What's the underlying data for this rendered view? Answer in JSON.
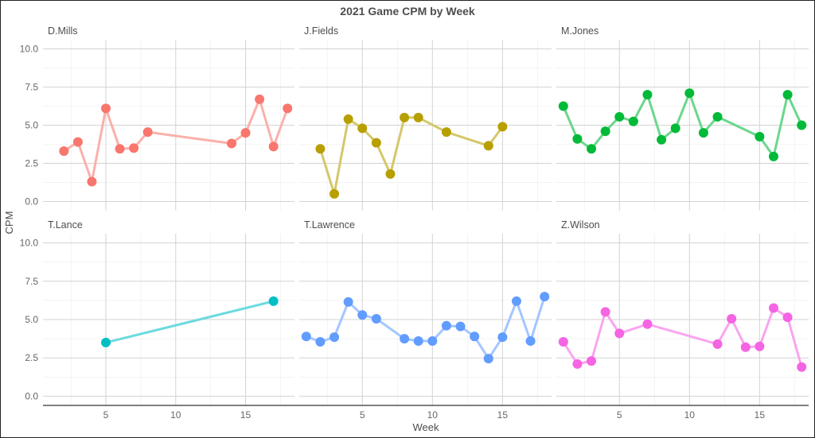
{
  "chart_data": {
    "type": "line",
    "title": "2021 Game CPM by Week",
    "xlabel": "Week",
    "ylabel": "CPM",
    "xlim": [
      0.5,
      18.5
    ],
    "ylim": [
      -0.6,
      10.6
    ],
    "x_ticks": [
      5,
      10,
      15
    ],
    "y_ticks": [
      "0.0",
      "2.5",
      "5.0",
      "7.5",
      "10.0"
    ],
    "y_tick_values": [
      0,
      2.5,
      5,
      7.5,
      10
    ],
    "grid": true,
    "facets": [
      {
        "name": "D.Mills",
        "color": "#F8766D",
        "x": [
          2,
          3,
          4,
          5,
          6,
          7,
          8,
          14,
          15,
          16,
          17,
          18
        ],
        "y": [
          3.3,
          3.9,
          1.3,
          6.1,
          3.45,
          3.5,
          4.55,
          3.8,
          4.5,
          6.7,
          3.6,
          6.1
        ]
      },
      {
        "name": "J.Fields",
        "color": "#B79F00",
        "x": [
          2,
          3,
          4,
          5,
          6,
          7,
          8,
          9,
          11,
          14,
          15
        ],
        "y": [
          3.45,
          0.5,
          5.4,
          4.8,
          3.85,
          1.8,
          5.5,
          5.5,
          4.55,
          3.65,
          4.9
        ]
      },
      {
        "name": "M.Jones",
        "color": "#00BA38",
        "x": [
          1,
          2,
          3,
          4,
          5,
          6,
          7,
          8,
          9,
          10,
          11,
          12,
          15,
          16,
          17,
          18
        ],
        "y": [
          6.25,
          4.1,
          3.45,
          4.6,
          5.55,
          5.25,
          7.0,
          4.05,
          4.8,
          7.1,
          4.5,
          5.55,
          4.25,
          2.95,
          7.0,
          5.0
        ]
      },
      {
        "name": "T.Lance",
        "color": "#00BFC4",
        "x": [
          5,
          17
        ],
        "y": [
          3.5,
          6.2
        ]
      },
      {
        "name": "T.Lawrence",
        "color": "#619CFF",
        "x": [
          1,
          2,
          3,
          4,
          5,
          6,
          8,
          9,
          10,
          11,
          12,
          13,
          14,
          15,
          16,
          17,
          18
        ],
        "y": [
          3.9,
          3.55,
          3.85,
          6.15,
          5.3,
          5.05,
          3.75,
          3.6,
          3.6,
          4.6,
          4.55,
          3.9,
          2.45,
          3.85,
          6.2,
          3.6,
          6.5
        ]
      },
      {
        "name": "Z.Wilson",
        "color": "#F564E3",
        "x": [
          1,
          2,
          3,
          4,
          5,
          7,
          12,
          13,
          14,
          15,
          16,
          17,
          18
        ],
        "y": [
          3.55,
          2.1,
          2.3,
          5.5,
          4.1,
          4.7,
          3.4,
          5.05,
          3.2,
          3.25,
          5.75,
          5.15,
          1.9
        ]
      }
    ]
  }
}
